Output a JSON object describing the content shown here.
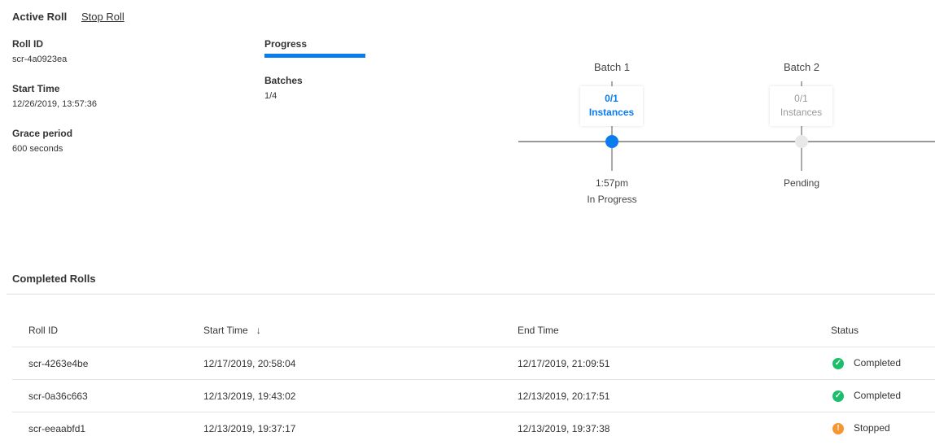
{
  "active": {
    "title": "Active Roll",
    "stop_label": "Stop Roll",
    "roll_id_label": "Roll ID",
    "roll_id": "scr-4a0923ea",
    "start_label": "Start Time",
    "start": "12/26/2019, 13:57:36",
    "grace_label": "Grace period",
    "grace": "600 seconds",
    "progress_label": "Progress",
    "progress_fraction": 1.0,
    "progress_color": "#0a7cf0",
    "batches_label": "Batches",
    "batches": "1/4"
  },
  "timeline": [
    {
      "name": "Batch 1",
      "count": "0/1",
      "unit": "Instances",
      "time": "1:57pm",
      "status": "In Progress",
      "color": "#0a7cf0"
    },
    {
      "name": "Batch 2",
      "count": "0/1",
      "unit": "Instances",
      "status": "Pending",
      "color": "#e8e8e8"
    }
  ],
  "completed": {
    "title": "Completed Rolls",
    "columns": [
      "Roll ID",
      "Start Time",
      "End Time",
      "Status"
    ],
    "rows": [
      {
        "id": "scr-4263e4be",
        "start": "12/17/2019, 20:58:04",
        "end": "12/17/2019, 21:09:51",
        "status": "Completed",
        "icon": "check-circle-icon",
        "color": "#1bbf6b"
      },
      {
        "id": "scr-0a36c663",
        "start": "12/13/2019, 19:43:02",
        "end": "12/13/2019, 20:17:51",
        "status": "Completed",
        "icon": "check-circle-icon",
        "color": "#1bbf6b"
      },
      {
        "id": "scr-eeaabfd1",
        "start": "12/13/2019, 19:37:17",
        "end": "12/13/2019, 19:37:38",
        "status": "Stopped",
        "icon": "exclamation-circle-icon",
        "color": "#f5962f"
      }
    ]
  }
}
